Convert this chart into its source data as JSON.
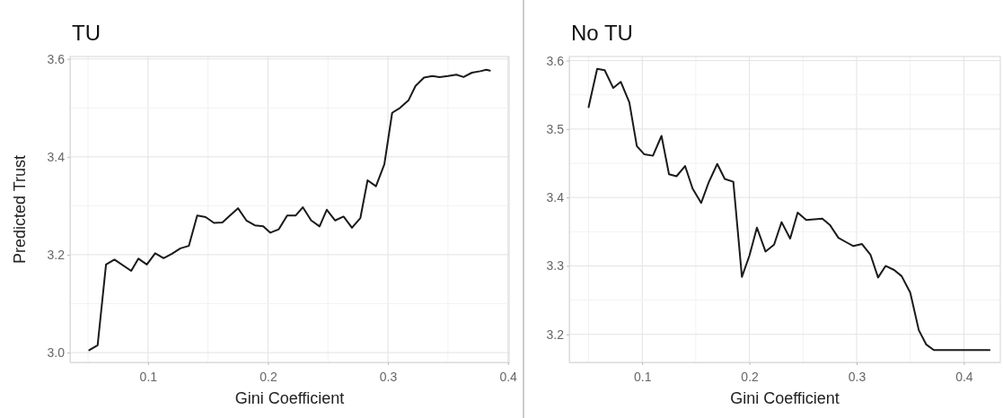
{
  "chart_data": [
    {
      "type": "line",
      "title": "TU",
      "xlabel": "Gini Coefficient",
      "ylabel": "Predicted Trust",
      "xlim": [
        0.035,
        0.401
      ],
      "ylim": [
        2.98,
        3.605
      ],
      "xticks": [
        0.1,
        0.2,
        0.3,
        0.4
      ],
      "yticks": [
        {
          "value": 3,
          "label": "3.0"
        },
        3.2,
        3.4,
        3.6
      ],
      "grid": true,
      "series": [
        {
          "color": "#1a1a1a",
          "x": [
            0.051,
            0.058,
            0.065,
            0.072,
            0.086,
            0.092,
            0.099,
            0.106,
            0.113,
            0.12,
            0.127,
            0.134,
            0.141,
            0.148,
            0.155,
            0.162,
            0.175,
            0.182,
            0.189,
            0.196,
            0.202,
            0.209,
            0.216,
            0.223,
            0.229,
            0.236,
            0.243,
            0.249,
            0.256,
            0.263,
            0.27,
            0.277,
            0.283,
            0.29,
            0.297,
            0.3035,
            0.31,
            0.317,
            0.323,
            0.33,
            0.337,
            0.343,
            0.35,
            0.357,
            0.363,
            0.37,
            0.377,
            0.382,
            0.385
          ],
          "values": [
            3.005,
            3.015,
            3.18,
            3.19,
            3.167,
            3.192,
            3.18,
            3.203,
            3.193,
            3.202,
            3.213,
            3.218,
            3.28,
            3.277,
            3.265,
            3.266,
            3.295,
            3.27,
            3.26,
            3.258,
            3.245,
            3.252,
            3.28,
            3.28,
            3.297,
            3.27,
            3.258,
            3.292,
            3.27,
            3.278,
            3.255,
            3.275,
            3.352,
            3.34,
            3.385,
            3.49,
            3.5,
            3.515,
            3.545,
            3.562,
            3.565,
            3.563,
            3.565,
            3.568,
            3.563,
            3.572,
            3.575,
            3.578,
            3.576
          ]
        }
      ]
    },
    {
      "type": "line",
      "title": "No TU",
      "xlabel": "Gini Coefficient",
      "xlim": [
        0.032,
        0.434
      ],
      "ylim": [
        3.159,
        3.606
      ],
      "xticks": [
        0.1,
        0.2,
        0.3,
        0.4
      ],
      "yticks": [
        3.2,
        3.3,
        3.4,
        3.5,
        3.6
      ],
      "grid": true,
      "series": [
        {
          "color": "#1a1a1a",
          "x": [
            0.05,
            0.058,
            0.065,
            0.073,
            0.08,
            0.088,
            0.095,
            0.102,
            0.11,
            0.118,
            0.125,
            0.132,
            0.14,
            0.147,
            0.155,
            0.162,
            0.17,
            0.177,
            0.185,
            0.193,
            0.2,
            0.207,
            0.215,
            0.223,
            0.23,
            0.238,
            0.245,
            0.253,
            0.268,
            0.275,
            0.283,
            0.291,
            0.297,
            0.305,
            0.313,
            0.32,
            0.327,
            0.335,
            0.342,
            0.35,
            0.358,
            0.365,
            0.372,
            0.398,
            0.424
          ],
          "values": [
            3.532,
            3.588,
            3.586,
            3.56,
            3.569,
            3.539,
            3.475,
            3.463,
            3.461,
            3.49,
            3.434,
            3.431,
            3.446,
            3.413,
            3.392,
            3.422,
            3.449,
            3.427,
            3.423,
            3.284,
            3.315,
            3.356,
            3.321,
            3.331,
            3.364,
            3.34,
            3.378,
            3.367,
            3.369,
            3.36,
            3.341,
            3.334,
            3.329,
            3.332,
            3.316,
            3.283,
            3.3,
            3.294,
            3.285,
            3.261,
            3.206,
            3.185,
            3.177,
            3.177,
            3.177
          ]
        }
      ]
    }
  ]
}
